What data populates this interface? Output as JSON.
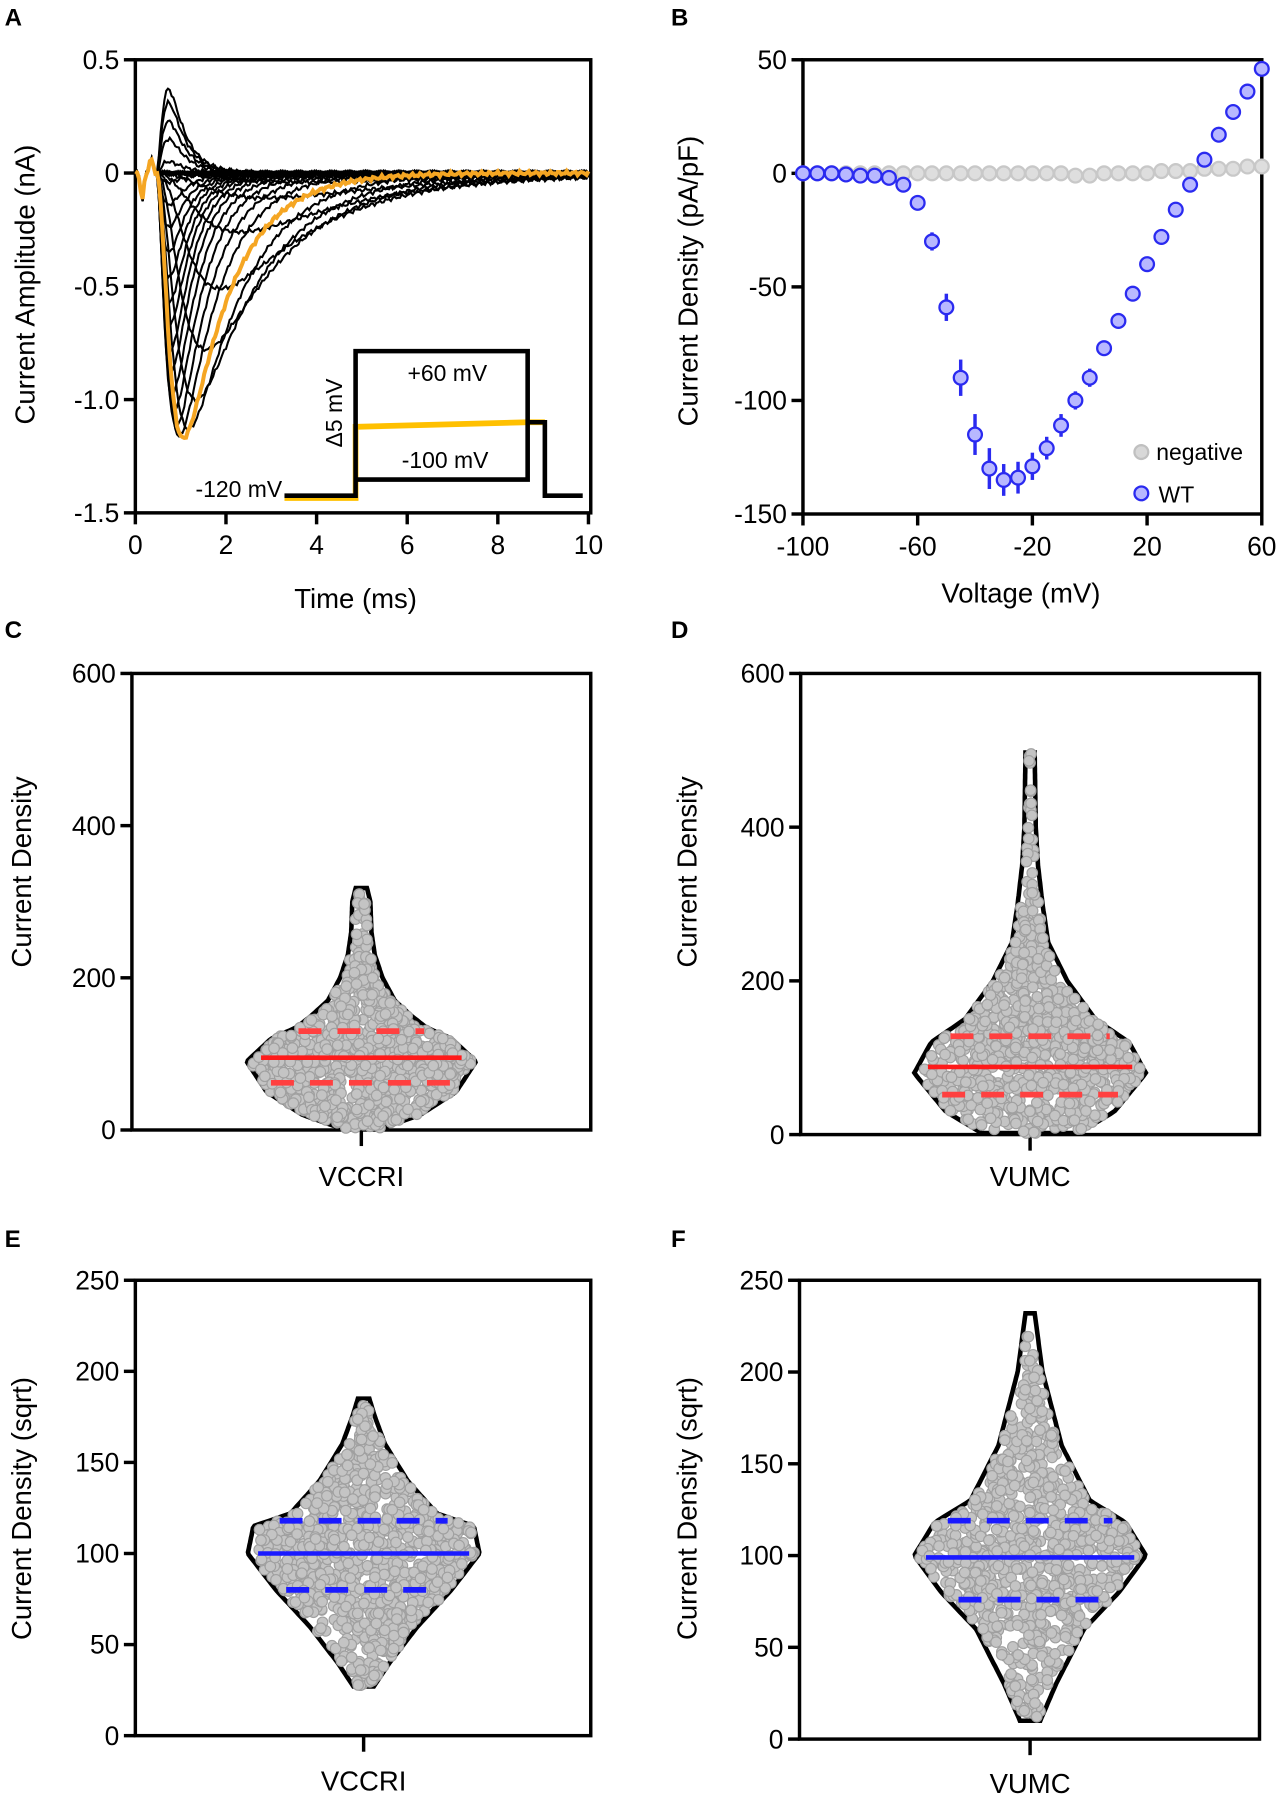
{
  "panels": {
    "A": "A",
    "B": "B",
    "C": "C",
    "D": "D",
    "E": "E",
    "F": "F"
  },
  "colors": {
    "trace": "#000000",
    "highlight": "#f5a623",
    "protocol_highlight": "#ffc000",
    "wt": "#2a2af0",
    "wt_fill": "#b8b8ff",
    "negative": "#c8c8c8",
    "median_red": "#ff1a1a",
    "quartile_red": "#ff4040",
    "median_blue": "#1a1aff",
    "dot": "#c4c4c4",
    "dot_edge": "#a0a0a0"
  },
  "chart_data": [
    {
      "panel": "A",
      "type": "line",
      "title": "",
      "xlabel": "Time (ms)",
      "ylabel": "Current Amplitude (nA)",
      "xlim": [
        0,
        10
      ],
      "ylim": [
        -1.5,
        0.5
      ],
      "xticks": [
        "0",
        "2",
        "4",
        "6",
        "8",
        "10"
      ],
      "xtick_values": [
        0,
        2,
        4,
        6,
        8,
        10
      ],
      "yticks": [
        "0.5",
        "0",
        "-0.5",
        "-1.0",
        "-1.5"
      ],
      "ytick_values": [
        0.5,
        0,
        -0.5,
        -1.0,
        -1.5
      ],
      "step_voltages_mV": [
        -100,
        -95,
        -90,
        -85,
        -80,
        -75,
        -70,
        -65,
        -60,
        -55,
        -50,
        -45,
        -40,
        -35,
        -30,
        -25,
        -20,
        -15,
        -10,
        -5,
        0,
        5,
        10,
        15,
        20,
        25,
        30,
        35,
        40,
        45,
        50,
        55,
        60
      ],
      "peak_current_nA": [
        0,
        0,
        0,
        0,
        -0.01,
        -0.01,
        -0.02,
        -0.04,
        -0.11,
        -0.26,
        -0.51,
        -0.78,
        -1.0,
        -1.13,
        -1.17,
        -1.16,
        -1.12,
        -1.05,
        -0.97,
        -0.87,
        -0.78,
        -0.67,
        -0.57,
        -0.46,
        -0.35,
        -0.24,
        -0.14,
        -0.04,
        0.05,
        0.15,
        0.23,
        0.31,
        0.37
      ],
      "highlighted_voltage_mV": -30,
      "inset": {
        "hold_label": "-120 mV",
        "top_label": "+60 mV",
        "bottom_label": "-100 mV",
        "step_label": "Δ5 mV"
      }
    },
    {
      "panel": "B",
      "type": "scatter",
      "xlabel": "Voltage (mV)",
      "ylabel": "Current Density (pA/pF)",
      "xlim": [
        -100,
        60
      ],
      "ylim": [
        -150,
        50
      ],
      "xticks": [
        "-100",
        "-60",
        "-20",
        "20",
        "60"
      ],
      "xtick_values": [
        -100,
        -60,
        -20,
        20,
        60
      ],
      "yticks": [
        "50",
        "0",
        "-50",
        "-100",
        "-150"
      ],
      "ytick_values": [
        50,
        0,
        -50,
        -100,
        -150
      ],
      "legend": "bottom-right",
      "x": [
        -100,
        -95,
        -90,
        -85,
        -80,
        -75,
        -70,
        -65,
        -60,
        -55,
        -50,
        -45,
        -40,
        -35,
        -30,
        -25,
        -20,
        -15,
        -10,
        -5,
        0,
        5,
        10,
        15,
        20,
        25,
        30,
        35,
        40,
        45,
        50,
        55,
        60
      ],
      "series": [
        {
          "name": "negative",
          "values": [
            0,
            0,
            0,
            0,
            0,
            0,
            0,
            0,
            0,
            0,
            0,
            0,
            0,
            0,
            0,
            0,
            0,
            0,
            0,
            -1,
            -1,
            0,
            0,
            0,
            0,
            1,
            1,
            1,
            2,
            2,
            2,
            3,
            3
          ],
          "sem": []
        },
        {
          "name": "WT",
          "values": [
            0,
            0,
            0,
            -0.5,
            -1,
            -1,
            -2,
            -5,
            -13,
            -30,
            -59,
            -90,
            -115,
            -130,
            -135,
            -134,
            -129,
            -121,
            -111,
            -100,
            -90,
            -77,
            -65,
            -53,
            -40,
            -28,
            -16,
            -5,
            6,
            17,
            27,
            36,
            46
          ],
          "sem": [
            0,
            0,
            0,
            0,
            0,
            0,
            0,
            1,
            2,
            4,
            6,
            8,
            9,
            9,
            7,
            7,
            6,
            5,
            5,
            4,
            4,
            3,
            3,
            2,
            2,
            2,
            2,
            2,
            2,
            2,
            2,
            2,
            2
          ]
        }
      ]
    },
    {
      "panel": "C",
      "type": "violin",
      "category": "VCCRI",
      "ylabel": "Current Density",
      "ylim": [
        0,
        600
      ],
      "yticks": [
        "0",
        "200",
        "400",
        "600"
      ],
      "ytick_values": [
        0,
        200,
        400,
        600
      ],
      "median": 95,
      "q1": 62,
      "q3": 130,
      "min": 2,
      "max": 318,
      "density_profile": [
        [
          2,
          0.15
        ],
        [
          20,
          0.5
        ],
        [
          50,
          0.82
        ],
        [
          90,
          1.0
        ],
        [
          120,
          0.78
        ],
        [
          135,
          0.55
        ],
        [
          150,
          0.42
        ],
        [
          170,
          0.27
        ],
        [
          200,
          0.16
        ],
        [
          230,
          0.09
        ],
        [
          260,
          0.06
        ],
        [
          300,
          0.05
        ],
        [
          318,
          0.02
        ]
      ],
      "line_color": "red"
    },
    {
      "panel": "D",
      "type": "violin",
      "category": "VUMC",
      "ylabel": "Current Density",
      "ylim": [
        0,
        600
      ],
      "yticks": [
        "0",
        "200",
        "400",
        "600"
      ],
      "ytick_values": [
        0,
        200,
        400,
        600
      ],
      "median": 88,
      "q1": 52,
      "q3": 128,
      "min": 2,
      "max": 497,
      "density_profile": [
        [
          2,
          0.4
        ],
        [
          30,
          0.72
        ],
        [
          80,
          1.0
        ],
        [
          120,
          0.85
        ],
        [
          150,
          0.55
        ],
        [
          200,
          0.3
        ],
        [
          250,
          0.13
        ],
        [
          300,
          0.08
        ],
        [
          350,
          0.04
        ],
        [
          400,
          0.02
        ],
        [
          497,
          0.01
        ]
      ],
      "line_color": "red"
    },
    {
      "panel": "E",
      "type": "violin",
      "category": "VCCRI",
      "ylabel": "Current Density (sqrt)",
      "ylim": [
        0,
        250
      ],
      "yticks": [
        "0",
        "50",
        "100",
        "150",
        "200",
        "250"
      ],
      "ytick_values": [
        0,
        50,
        100,
        150,
        200,
        250
      ],
      "median": 100,
      "q1": 80,
      "q3": 118,
      "min": 27,
      "max": 185,
      "density_profile": [
        [
          27,
          0.06
        ],
        [
          40,
          0.2
        ],
        [
          60,
          0.45
        ],
        [
          80,
          0.75
        ],
        [
          100,
          1.0
        ],
        [
          115,
          0.95
        ],
        [
          122,
          0.62
        ],
        [
          140,
          0.36
        ],
        [
          160,
          0.16
        ],
        [
          175,
          0.07
        ],
        [
          185,
          0.02
        ]
      ],
      "line_color": "blue"
    },
    {
      "panel": "F",
      "type": "violin",
      "category": "VUMC",
      "ylabel": "Current Density (sqrt)",
      "ylim": [
        0,
        250
      ],
      "yticks": [
        "0",
        "50",
        "100",
        "150",
        "200",
        "250"
      ],
      "ytick_values": [
        0,
        50,
        100,
        150,
        200,
        250
      ],
      "median": 99,
      "q1": 76,
      "q3": 119,
      "min": 10,
      "max": 232,
      "density_profile": [
        [
          10,
          0.06
        ],
        [
          30,
          0.2
        ],
        [
          60,
          0.45
        ],
        [
          80,
          0.76
        ],
        [
          100,
          1.0
        ],
        [
          118,
          0.82
        ],
        [
          130,
          0.5
        ],
        [
          160,
          0.25
        ],
        [
          200,
          0.08
        ],
        [
          232,
          0.01
        ]
      ],
      "line_color": "blue"
    }
  ]
}
